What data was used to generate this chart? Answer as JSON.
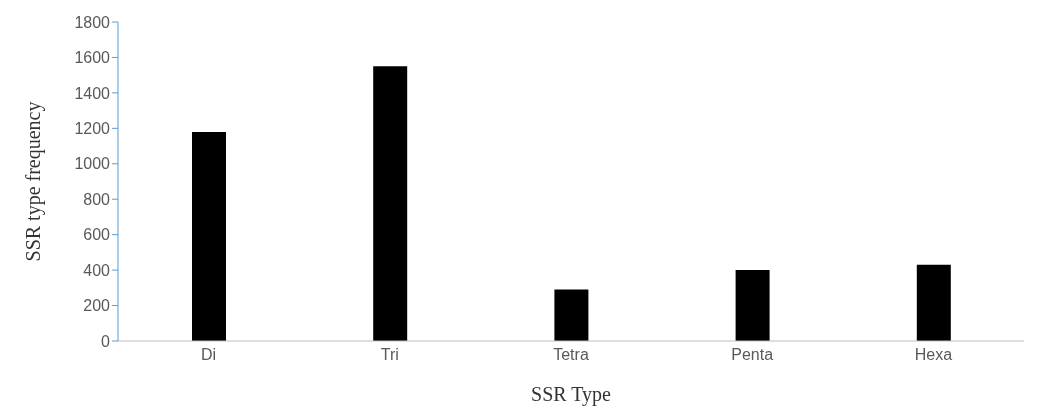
{
  "chart_data": {
    "type": "bar",
    "xlabel": "SSR Type",
    "ylabel": "SSR type frequency",
    "categories": [
      "Di",
      "Tri",
      "Tetra",
      "Penta",
      "Hexa"
    ],
    "values": [
      1180,
      1550,
      290,
      400,
      430
    ],
    "color": "#000000",
    "ylim": [
      0,
      1800
    ],
    "yticks": [
      0,
      200,
      400,
      600,
      800,
      1000,
      1200,
      1400,
      1600,
      1800
    ],
    "grid": false
  }
}
